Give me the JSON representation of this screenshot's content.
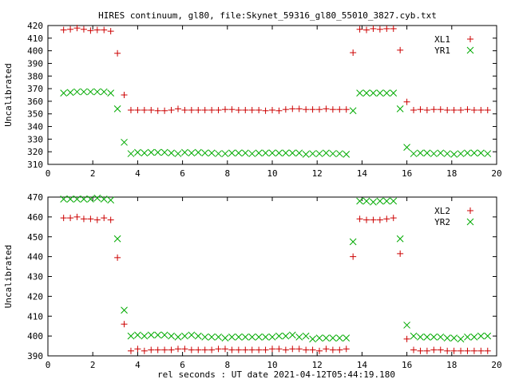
{
  "title": "HIRES continuum, gl80, file:Skynet_59316_gl80_55010_3827.cyb.txt",
  "colors": {
    "red": "#cc0000",
    "green": "#00aa00"
  },
  "chart_data": [
    {
      "type": "scatter",
      "xlabel": "",
      "ylabel": "Uncalibrated",
      "xlim": [
        0,
        20
      ],
      "ylim": [
        310,
        420
      ],
      "xticks": [
        "0",
        "2",
        "4",
        "6",
        "8",
        "10",
        "12",
        "14",
        "16",
        "18",
        "20"
      ],
      "yticks": [
        "310",
        "320",
        "330",
        "340",
        "350",
        "360",
        "370",
        "380",
        "390",
        "400",
        "410",
        "420"
      ],
      "legend_position": "top-right",
      "series": [
        {
          "name": "XL1",
          "color": "#cc0000",
          "marker": "plus",
          "x": [
            0.7,
            1.0,
            1.3,
            1.6,
            1.9,
            2.2,
            2.5,
            2.8,
            3.1,
            3.4,
            3.7,
            4.0,
            4.3,
            4.6,
            4.9,
            5.2,
            5.5,
            5.8,
            6.1,
            6.4,
            6.7,
            7.0,
            7.3,
            7.6,
            7.9,
            8.2,
            8.5,
            8.8,
            9.1,
            9.4,
            9.7,
            10.0,
            10.3,
            10.6,
            10.9,
            11.2,
            11.5,
            11.8,
            12.1,
            12.4,
            12.7,
            13.0,
            13.3,
            13.6,
            13.9,
            14.2,
            14.5,
            14.8,
            15.1,
            15.4,
            15.7,
            16.0,
            16.3,
            16.6,
            16.9,
            17.2,
            17.5,
            17.8,
            18.1,
            18.4,
            18.7,
            19.0,
            19.3,
            19.6
          ],
          "y": [
            416.5,
            417,
            418,
            417,
            416,
            416.5,
            416.5,
            415.5,
            398,
            365,
            353,
            353,
            353,
            353,
            352.5,
            352.5,
            353,
            354,
            353,
            353,
            353,
            353,
            353,
            353,
            353.5,
            353.5,
            353,
            353,
            353,
            353,
            352.5,
            353,
            352.5,
            353.5,
            354,
            354,
            353.5,
            353.5,
            353.5,
            354,
            353.5,
            353.5,
            353.5,
            398.5,
            417,
            416.5,
            417.5,
            417,
            417.5,
            417.5,
            400.5,
            359.5,
            353,
            353.5,
            353,
            353.5,
            353.5,
            353,
            353,
            353,
            353.5,
            353,
            353,
            353
          ]
        },
        {
          "name": "YR1",
          "color": "#00aa00",
          "marker": "cross",
          "x": [
            0.7,
            1.0,
            1.3,
            1.6,
            1.9,
            2.2,
            2.5,
            2.8,
            3.1,
            3.4,
            3.7,
            4.0,
            4.3,
            4.6,
            4.9,
            5.2,
            5.5,
            5.8,
            6.1,
            6.4,
            6.7,
            7.0,
            7.3,
            7.6,
            7.9,
            8.2,
            8.5,
            8.8,
            9.1,
            9.4,
            9.7,
            10.0,
            10.3,
            10.6,
            10.9,
            11.2,
            11.5,
            11.8,
            12.1,
            12.4,
            12.7,
            13.0,
            13.3,
            13.6,
            13.9,
            14.2,
            14.5,
            14.8,
            15.1,
            15.4,
            15.7,
            16.0,
            16.3,
            16.6,
            16.9,
            17.2,
            17.5,
            17.8,
            18.1,
            18.4,
            18.7,
            19.0,
            19.3,
            19.6
          ],
          "y": [
            366.5,
            367,
            367.5,
            367.5,
            367.5,
            367.5,
            367.5,
            366.5,
            354,
            327.5,
            318.5,
            319.5,
            319,
            319.5,
            319.5,
            319.5,
            319,
            318.5,
            319.5,
            319,
            319.5,
            319,
            319,
            318.5,
            318.5,
            319,
            319,
            319,
            318.5,
            319,
            319,
            319,
            319,
            319,
            319,
            319,
            318,
            318.5,
            318.5,
            319,
            318.5,
            318.5,
            318,
            352.5,
            366.5,
            366.5,
            366.5,
            366.5,
            366.5,
            366.5,
            354,
            323.5,
            318.5,
            319,
            319,
            318.5,
            319,
            318.5,
            318,
            318.5,
            319,
            319,
            319,
            318.5
          ]
        }
      ]
    },
    {
      "type": "scatter",
      "xlabel": "rel seconds : UT date 2021-04-12T05:44:19.180",
      "ylabel": "Uncalibrated",
      "xlim": [
        0,
        20
      ],
      "ylim": [
        390,
        470
      ],
      "xticks": [
        "0",
        "2",
        "4",
        "6",
        "8",
        "10",
        "12",
        "14",
        "16",
        "18",
        "20"
      ],
      "yticks": [
        "390",
        "400",
        "410",
        "420",
        "430",
        "440",
        "450",
        "460",
        "470"
      ],
      "legend_position": "top-right",
      "series": [
        {
          "name": "XL2",
          "color": "#cc0000",
          "marker": "plus",
          "x": [
            0.7,
            1.0,
            1.3,
            1.6,
            1.9,
            2.2,
            2.5,
            2.8,
            3.1,
            3.4,
            3.7,
            4.0,
            4.3,
            4.6,
            4.9,
            5.2,
            5.5,
            5.8,
            6.1,
            6.4,
            6.7,
            7.0,
            7.3,
            7.6,
            7.9,
            8.2,
            8.5,
            8.8,
            9.1,
            9.4,
            9.7,
            10.0,
            10.3,
            10.6,
            10.9,
            11.2,
            11.5,
            11.8,
            12.1,
            12.4,
            12.7,
            13.0,
            13.3,
            13.6,
            13.9,
            14.2,
            14.5,
            14.8,
            15.1,
            15.4,
            15.7,
            16.0,
            16.3,
            16.6,
            16.9,
            17.2,
            17.5,
            17.8,
            18.1,
            18.4,
            18.7,
            19.0,
            19.3,
            19.6
          ],
          "y": [
            459.5,
            459.5,
            460,
            459,
            459,
            458.5,
            459.5,
            458.5,
            439.5,
            406,
            392.5,
            393.5,
            392.5,
            393,
            393,
            393,
            393,
            393.5,
            393.5,
            393,
            393,
            393,
            393,
            393.5,
            393.5,
            393,
            393,
            393,
            393,
            393,
            393,
            393.5,
            393.5,
            393,
            393.5,
            393.5,
            393,
            393,
            392.5,
            393.5,
            393,
            393,
            393.5,
            440,
            459,
            458.5,
            458.5,
            458.5,
            459,
            459.5,
            441.5,
            398.5,
            393,
            392.5,
            392.5,
            393,
            393,
            392.5,
            392.5,
            392.5,
            392.5,
            392.5,
            392.5,
            392.5
          ]
        },
        {
          "name": "YR2",
          "color": "#00aa00",
          "marker": "cross",
          "x": [
            0.7,
            1.0,
            1.3,
            1.6,
            1.9,
            2.2,
            2.5,
            2.8,
            3.1,
            3.4,
            3.7,
            4.0,
            4.3,
            4.6,
            4.9,
            5.2,
            5.5,
            5.8,
            6.1,
            6.4,
            6.7,
            7.0,
            7.3,
            7.6,
            7.9,
            8.2,
            8.5,
            8.8,
            9.1,
            9.4,
            9.7,
            10.0,
            10.3,
            10.6,
            10.9,
            11.2,
            11.5,
            11.8,
            12.1,
            12.4,
            12.7,
            13.0,
            13.3,
            13.6,
            13.9,
            14.2,
            14.5,
            14.8,
            15.1,
            15.4,
            15.7,
            16.0,
            16.3,
            16.6,
            16.9,
            17.2,
            17.5,
            17.8,
            18.1,
            18.4,
            18.7,
            19.0,
            19.3,
            19.6
          ],
          "y": [
            469,
            469,
            469,
            469,
            469,
            469.5,
            469,
            468.5,
            449,
            413,
            400,
            400.5,
            400,
            400.5,
            400.5,
            400.5,
            400,
            399.5,
            400,
            400.5,
            400,
            399.5,
            399.5,
            399.5,
            399,
            399.5,
            399.5,
            399.5,
            399.5,
            399.5,
            399.5,
            399.5,
            400,
            400,
            400.5,
            399.5,
            400,
            398.5,
            399,
            399,
            399,
            399,
            399,
            447.5,
            468,
            468,
            467.5,
            468,
            468,
            468,
            449,
            405.5,
            400,
            399.5,
            399.5,
            399.5,
            399.5,
            399,
            399,
            398.5,
            399.5,
            399.5,
            400,
            400
          ]
        }
      ]
    }
  ]
}
